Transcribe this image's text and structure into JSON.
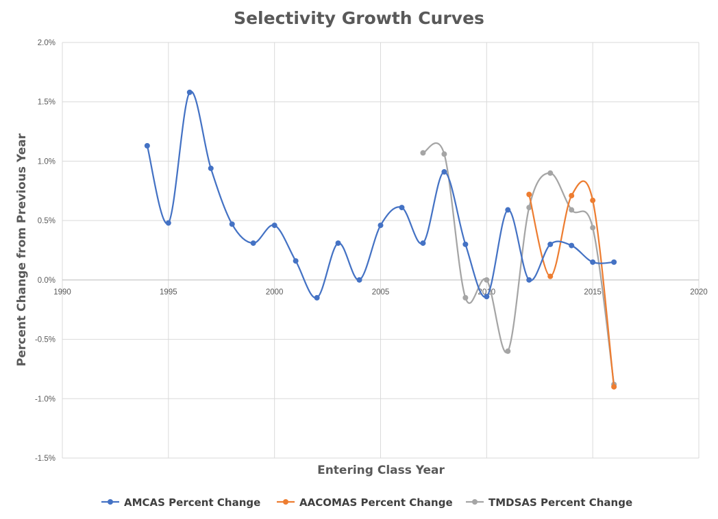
{
  "chart_data": {
    "type": "scatter",
    "title": "Selectivity Growth Curves",
    "xlabel": "Entering Class Year",
    "ylabel": "Percent Change from Previous Year",
    "xlim": [
      1990,
      2020
    ],
    "ylim": [
      -1.5,
      2.0
    ],
    "x_ticks": [
      "1990",
      "1995",
      "2000",
      "2005",
      "2010",
      "2015",
      "2020"
    ],
    "y_ticks": [
      "-1.5%",
      "-1.0%",
      "-0.5%",
      "0.0%",
      "0.5%",
      "1.0%",
      "1.5%",
      "2.0%"
    ],
    "grid": true,
    "smoothed_lines": true,
    "legend_position": "bottom",
    "series": [
      {
        "name": "AMCAS Percent Change",
        "color": "#4472c4",
        "x": [
          1994,
          1995,
          1996,
          1997,
          1998,
          1999,
          2000,
          2001,
          2002,
          2003,
          2004,
          2005,
          2006,
          2007,
          2008,
          2009,
          2010,
          2011,
          2012,
          2013,
          2014,
          2015,
          2016
        ],
        "y": [
          1.13,
          0.48,
          1.58,
          0.94,
          0.47,
          0.31,
          0.46,
          0.16,
          -0.15,
          0.31,
          0.0,
          0.46,
          0.61,
          0.31,
          0.91,
          0.3,
          -0.14,
          0.59,
          0.0,
          0.3,
          0.29,
          0.15,
          0.15
        ]
      },
      {
        "name": "AACOMAS Percent Change",
        "color": "#ed7d31",
        "x": [
          2012,
          2013,
          2014,
          2015,
          2016
        ],
        "y": [
          0.72,
          0.03,
          0.71,
          0.67,
          -0.9
        ]
      },
      {
        "name": "TMDSAS Percent Change",
        "color": "#a5a5a5",
        "x": [
          2007,
          2008,
          2009,
          2010,
          2011,
          2012,
          2013,
          2014,
          2015,
          2016
        ],
        "y": [
          1.07,
          1.06,
          -0.15,
          0.0,
          -0.6,
          0.61,
          0.9,
          0.59,
          0.44,
          -0.88
        ]
      }
    ]
  }
}
